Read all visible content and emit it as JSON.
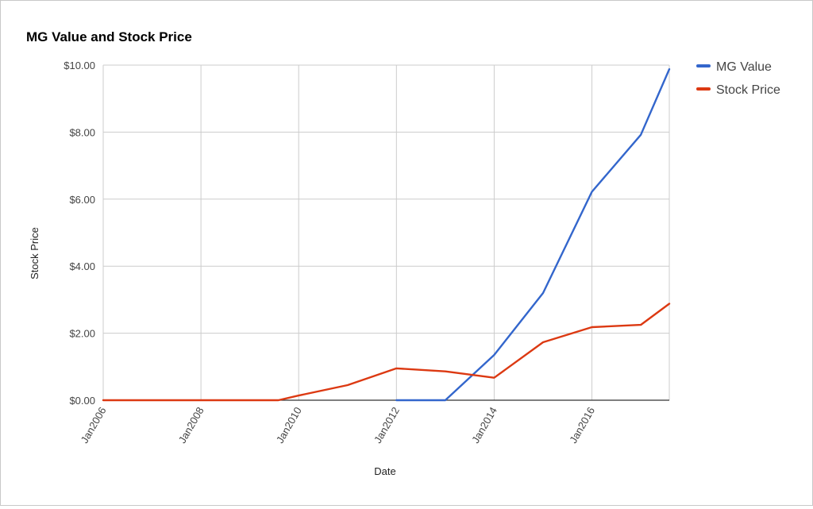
{
  "chart_data": {
    "type": "line",
    "title": "MG Value and Stock Price",
    "xlabel": "Date",
    "ylabel": "Stock Price",
    "x_ticks": [
      "Jan2006",
      "Jan2008",
      "Jan2010",
      "Jan2012",
      "Jan2014",
      "Jan2016"
    ],
    "y_ticks": [
      "$0.00",
      "$2.00",
      "$4.00",
      "$6.00",
      "$8.00",
      "$10.00"
    ],
    "ylim": [
      0,
      10
    ],
    "xlim": [
      "2006-01",
      "2017-08"
    ],
    "grid": true,
    "legend_position": "top-right",
    "series": [
      {
        "name": "MG Value",
        "color": "#3366cc",
        "points": [
          {
            "x": "2012-01",
            "y": 0.0
          },
          {
            "x": "2013-01",
            "y": 0.0
          },
          {
            "x": "2014-01",
            "y": 1.35
          },
          {
            "x": "2015-01",
            "y": 3.2
          },
          {
            "x": "2016-01",
            "y": 6.22
          },
          {
            "x": "2017-01",
            "y": 7.92
          },
          {
            "x": "2017-08",
            "y": 9.88
          }
        ]
      },
      {
        "name": "Stock Price",
        "color": "#dc3912",
        "points": [
          {
            "x": "2006-01",
            "y": 0.0
          },
          {
            "x": "2009-08",
            "y": 0.0
          },
          {
            "x": "2010-01",
            "y": 0.14
          },
          {
            "x": "2011-01",
            "y": 0.45
          },
          {
            "x": "2012-01",
            "y": 0.95
          },
          {
            "x": "2013-01",
            "y": 0.86
          },
          {
            "x": "2014-01",
            "y": 0.67
          },
          {
            "x": "2015-01",
            "y": 1.73
          },
          {
            "x": "2016-01",
            "y": 2.18
          },
          {
            "x": "2017-01",
            "y": 2.25
          },
          {
            "x": "2017-08",
            "y": 2.88
          }
        ]
      }
    ]
  }
}
